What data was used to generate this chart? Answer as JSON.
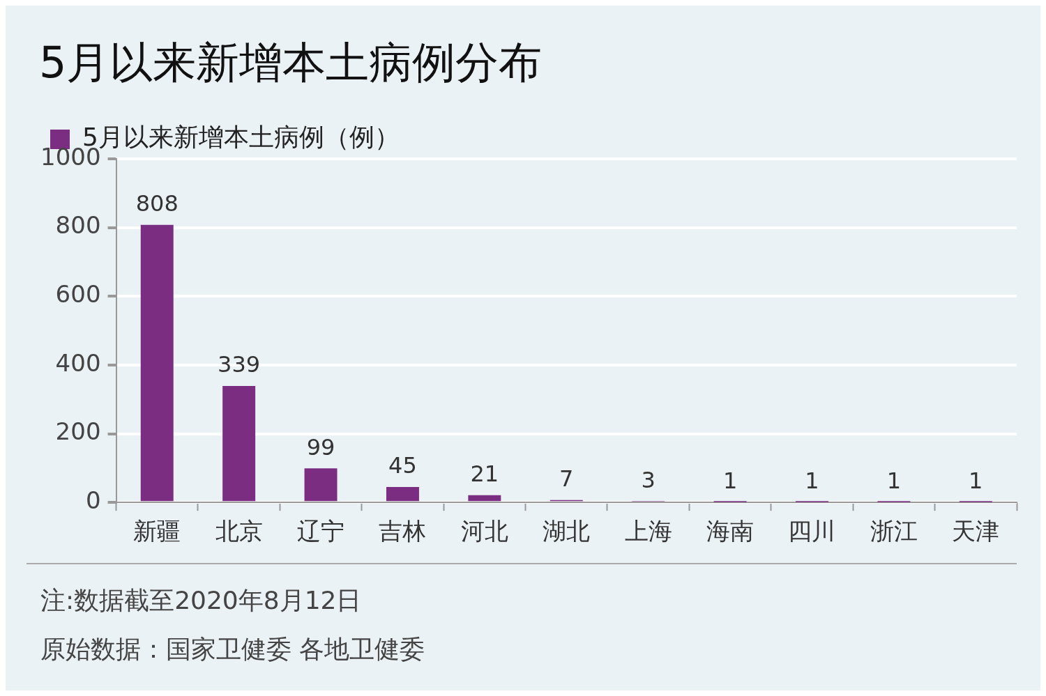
{
  "chart_data": {
    "type": "bar",
    "title": "5月以来新增本土病例分布",
    "categories": [
      "新疆",
      "北京",
      "辽宁",
      "吉林",
      "河北",
      "湖北",
      "上海",
      "海南",
      "四川",
      "浙江",
      "天津"
    ],
    "series": [
      {
        "name": "5月以来新增本土病例（例）",
        "color": "#7b2d82",
        "values": [
          808,
          339,
          99,
          45,
          21,
          7,
          3,
          1,
          1,
          1,
          1
        ]
      }
    ],
    "ylim": [
      0,
      1000
    ],
    "yticks": [
      0,
      200,
      400,
      600,
      800,
      1000
    ],
    "grid": "y",
    "legend": "top left",
    "data_labels": true,
    "annotations": [
      "注:数据截至2020年8月12日",
      "原始数据：国家卫健委 各地卫健委"
    ]
  }
}
